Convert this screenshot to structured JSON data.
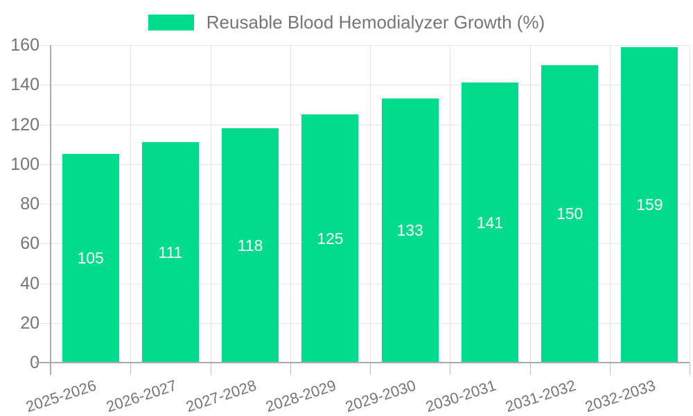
{
  "legend": {
    "label": "Reusable Blood Hemodialyzer Growth (%)"
  },
  "chart_data": {
    "type": "bar",
    "title": "",
    "series_name": "Reusable Blood Hemodialyzer Growth (%)",
    "categories": [
      "2025-2026",
      "2026-2027",
      "2027-2028",
      "2028-2029",
      "2029-2030",
      "2030-2031",
      "2031-2032",
      "2032-2033"
    ],
    "values": [
      105,
      111,
      118,
      125,
      133,
      141,
      150,
      159
    ],
    "xlabel": "",
    "ylabel": "",
    "ylim": [
      0,
      160
    ],
    "yticks": [
      0,
      20,
      40,
      60,
      80,
      100,
      120,
      140,
      160
    ],
    "grid": true,
    "legend_position": "top",
    "value_label_position": "inside-center",
    "colors": {
      "bar": "#00DC8C",
      "bar_value_text": "#ffffff",
      "axis_text": "#757575",
      "legend_text": "#757575",
      "gridline": "#e6e6e6",
      "axis_line": "#ababab",
      "background": "#ffffff"
    }
  }
}
